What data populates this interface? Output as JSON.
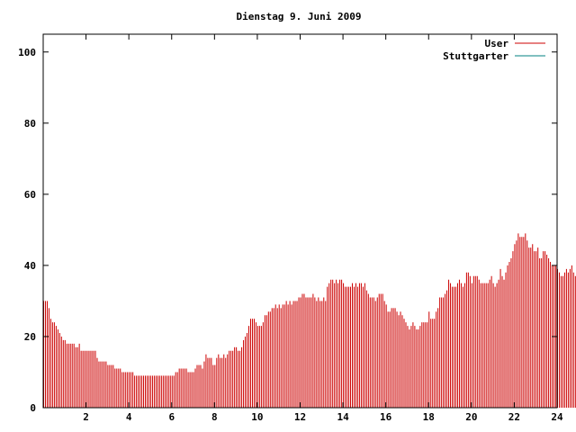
{
  "chart_data": {
    "type": "bar",
    "title": "Dienstag 9. Juni 2009",
    "xlabel": "",
    "ylabel": "",
    "xlim": [
      0,
      24
    ],
    "ylim": [
      0,
      105
    ],
    "x_ticks": [
      "2",
      "4",
      "6",
      "8",
      "10",
      "12",
      "14",
      "16",
      "18",
      "20",
      "22",
      "24"
    ],
    "x_tick_values": [
      2,
      4,
      6,
      8,
      10,
      12,
      14,
      16,
      18,
      20,
      22,
      24
    ],
    "y_ticks": [
      "0",
      "20",
      "40",
      "60",
      "80",
      "100"
    ],
    "y_tick_values": [
      0,
      20,
      40,
      60,
      80,
      100
    ],
    "grid": false,
    "legend_position": "top-right",
    "bar_interval_minutes": 5,
    "series": [
      {
        "name": "User",
        "color": "#cc0000",
        "values": [
          30,
          30,
          30,
          28,
          25,
          24,
          24,
          23,
          22,
          21,
          20,
          19,
          19,
          18,
          18,
          18,
          18,
          18,
          17,
          17,
          18,
          16,
          16,
          16,
          16,
          16,
          16,
          16,
          16,
          16,
          14,
          13,
          13,
          13,
          13,
          13,
          12,
          12,
          12,
          12,
          11,
          11,
          11,
          11,
          10,
          10,
          10,
          10,
          10,
          10,
          10,
          9,
          9,
          9,
          9,
          9,
          9,
          9,
          9,
          9,
          9,
          9,
          9,
          9,
          9,
          9,
          9,
          9,
          9,
          9,
          9,
          9,
          9,
          9,
          10,
          10,
          11,
          11,
          11,
          11,
          11,
          10,
          10,
          10,
          10,
          11,
          12,
          12,
          12,
          11,
          13,
          15,
          14,
          14,
          14,
          12,
          12,
          14,
          15,
          14,
          14,
          15,
          14,
          15,
          16,
          16,
          16,
          17,
          17,
          16,
          16,
          17,
          19,
          20,
          21,
          23,
          25,
          25,
          25,
          24,
          23,
          23,
          23,
          24,
          26,
          26,
          27,
          27,
          28,
          28,
          29,
          28,
          29,
          28,
          29,
          29,
          30,
          29,
          30,
          29,
          30,
          30,
          30,
          31,
          31,
          32,
          32,
          31,
          31,
          31,
          31,
          32,
          31,
          30,
          31,
          30,
          30,
          31,
          30,
          34,
          35,
          36,
          36,
          35,
          36,
          35,
          36,
          36,
          35,
          34,
          34,
          34,
          34,
          35,
          34,
          35,
          34,
          35,
          35,
          34,
          35,
          33,
          32,
          31,
          31,
          31,
          30,
          31,
          32,
          32,
          32,
          30,
          29,
          27,
          27,
          28,
          28,
          28,
          27,
          26,
          27,
          26,
          25,
          24,
          23,
          22,
          23,
          24,
          23,
          22,
          22,
          23,
          24,
          24,
          24,
          24,
          27,
          25,
          25,
          25,
          27,
          28,
          31,
          31,
          31,
          32,
          33,
          36,
          35,
          34,
          34,
          34,
          35,
          36,
          35,
          34,
          35,
          38,
          38,
          37,
          35,
          37,
          37,
          37,
          36,
          35,
          35,
          35,
          35,
          35,
          36,
          37,
          35,
          34,
          35,
          36,
          39,
          37,
          36,
          38,
          40,
          41,
          42,
          44,
          46,
          47,
          49,
          48,
          48,
          48,
          49,
          47,
          45,
          45,
          46,
          44,
          44,
          45,
          42,
          42,
          44,
          44,
          43,
          42,
          41,
          40,
          40,
          40,
          39,
          38,
          37,
          37,
          38,
          39,
          38,
          39,
          40,
          38,
          37,
          35,
          35,
          35
        ]
      },
      {
        "name": "Stuttgarter",
        "color": "#008080",
        "values": []
      }
    ]
  }
}
